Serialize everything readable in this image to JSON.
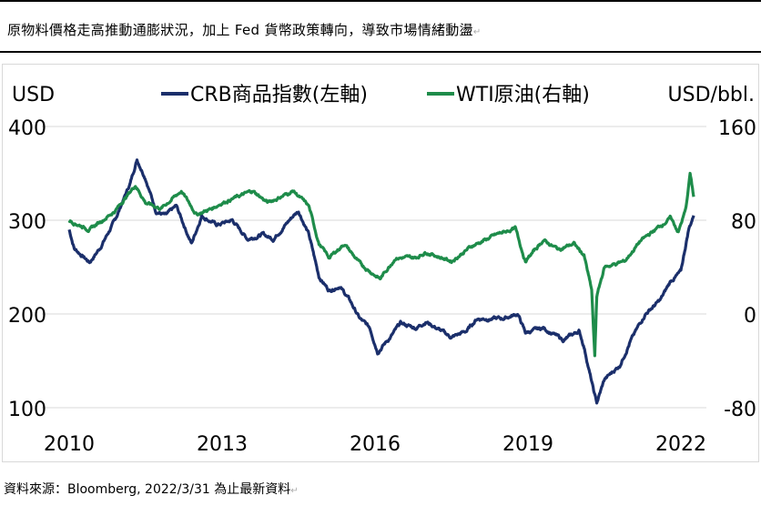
{
  "header": {
    "title": "原物料價格走高推動通膨狀況，加上 Fed 貨幣政策轉向，導致市場情緒動盪"
  },
  "source": "資料來源：Bloomberg, 2022/3/31 為止最新資料",
  "chart_data": {
    "type": "line",
    "left_axis_unit": "USD",
    "right_axis_unit": "USD/bbl.",
    "left_ylim": [
      100,
      400
    ],
    "right_ylim": [
      -80,
      160
    ],
    "left_ticks": [
      "400",
      "300",
      "200",
      "100"
    ],
    "right_ticks": [
      "160",
      "80",
      "0",
      "-80"
    ],
    "x_ticks": [
      "2010",
      "2013",
      "2016",
      "2019",
      "2022"
    ],
    "xlim": [
      2010,
      2022.3
    ],
    "grid": true,
    "legend": "top-center",
    "series": [
      {
        "name": "CRB商品指數(左軸)",
        "axis": "left",
        "color": "#1b2f6b",
        "points": [
          [
            2010.0,
            290
          ],
          [
            2010.1,
            270
          ],
          [
            2010.4,
            255
          ],
          [
            2010.6,
            270
          ],
          [
            2010.9,
            300
          ],
          [
            2011.2,
            340
          ],
          [
            2011.33,
            365
          ],
          [
            2011.5,
            345
          ],
          [
            2011.7,
            310
          ],
          [
            2011.9,
            305
          ],
          [
            2012.1,
            315
          ],
          [
            2012.4,
            275
          ],
          [
            2012.6,
            305
          ],
          [
            2012.9,
            295
          ],
          [
            2013.2,
            300
          ],
          [
            2013.5,
            280
          ],
          [
            2013.8,
            285
          ],
          [
            2014.0,
            280
          ],
          [
            2014.4,
            305
          ],
          [
            2014.5,
            310
          ],
          [
            2014.7,
            285
          ],
          [
            2014.9,
            240
          ],
          [
            2015.1,
            225
          ],
          [
            2015.3,
            230
          ],
          [
            2015.5,
            215
          ],
          [
            2015.7,
            195
          ],
          [
            2015.9,
            185
          ],
          [
            2016.05,
            160
          ],
          [
            2016.3,
            175
          ],
          [
            2016.5,
            190
          ],
          [
            2016.8,
            185
          ],
          [
            2017.0,
            192
          ],
          [
            2017.5,
            175
          ],
          [
            2017.8,
            182
          ],
          [
            2018.0,
            195
          ],
          [
            2018.5,
            195
          ],
          [
            2018.8,
            200
          ],
          [
            2018.95,
            180
          ],
          [
            2019.3,
            185
          ],
          [
            2019.7,
            172
          ],
          [
            2020.0,
            182
          ],
          [
            2020.1,
            165
          ],
          [
            2020.3,
            115
          ],
          [
            2020.35,
            105
          ],
          [
            2020.5,
            130
          ],
          [
            2020.8,
            145
          ],
          [
            2021.0,
            170
          ],
          [
            2021.3,
            200
          ],
          [
            2021.6,
            215
          ],
          [
            2021.8,
            235
          ],
          [
            2022.0,
            245
          ],
          [
            2022.15,
            290
          ],
          [
            2022.25,
            305
          ]
        ]
      },
      {
        "name": "WTI原油(右軸)",
        "axis": "right",
        "color": "#1e8c4a",
        "points": [
          [
            2010.0,
            80
          ],
          [
            2010.4,
            72
          ],
          [
            2010.9,
            88
          ],
          [
            2011.3,
            110
          ],
          [
            2011.5,
            95
          ],
          [
            2011.8,
            90
          ],
          [
            2012.2,
            105
          ],
          [
            2012.5,
            85
          ],
          [
            2012.8,
            90
          ],
          [
            2013.0,
            95
          ],
          [
            2013.6,
            105
          ],
          [
            2013.9,
            95
          ],
          [
            2014.4,
            105
          ],
          [
            2014.7,
            92
          ],
          [
            2014.9,
            60
          ],
          [
            2015.1,
            48
          ],
          [
            2015.4,
            60
          ],
          [
            2015.7,
            43
          ],
          [
            2016.1,
            30
          ],
          [
            2016.4,
            48
          ],
          [
            2016.8,
            48
          ],
          [
            2017.0,
            53
          ],
          [
            2017.5,
            45
          ],
          [
            2017.9,
            58
          ],
          [
            2018.4,
            68
          ],
          [
            2018.75,
            73
          ],
          [
            2018.95,
            45
          ],
          [
            2019.3,
            63
          ],
          [
            2019.6,
            55
          ],
          [
            2019.9,
            60
          ],
          [
            2020.1,
            50
          ],
          [
            2020.25,
            20
          ],
          [
            2020.31,
            -37
          ],
          [
            2020.35,
            15
          ],
          [
            2020.5,
            40
          ],
          [
            2020.9,
            45
          ],
          [
            2021.2,
            62
          ],
          [
            2021.5,
            72
          ],
          [
            2021.8,
            82
          ],
          [
            2021.95,
            70
          ],
          [
            2022.1,
            90
          ],
          [
            2022.18,
            120
          ],
          [
            2022.25,
            100
          ]
        ]
      }
    ]
  }
}
